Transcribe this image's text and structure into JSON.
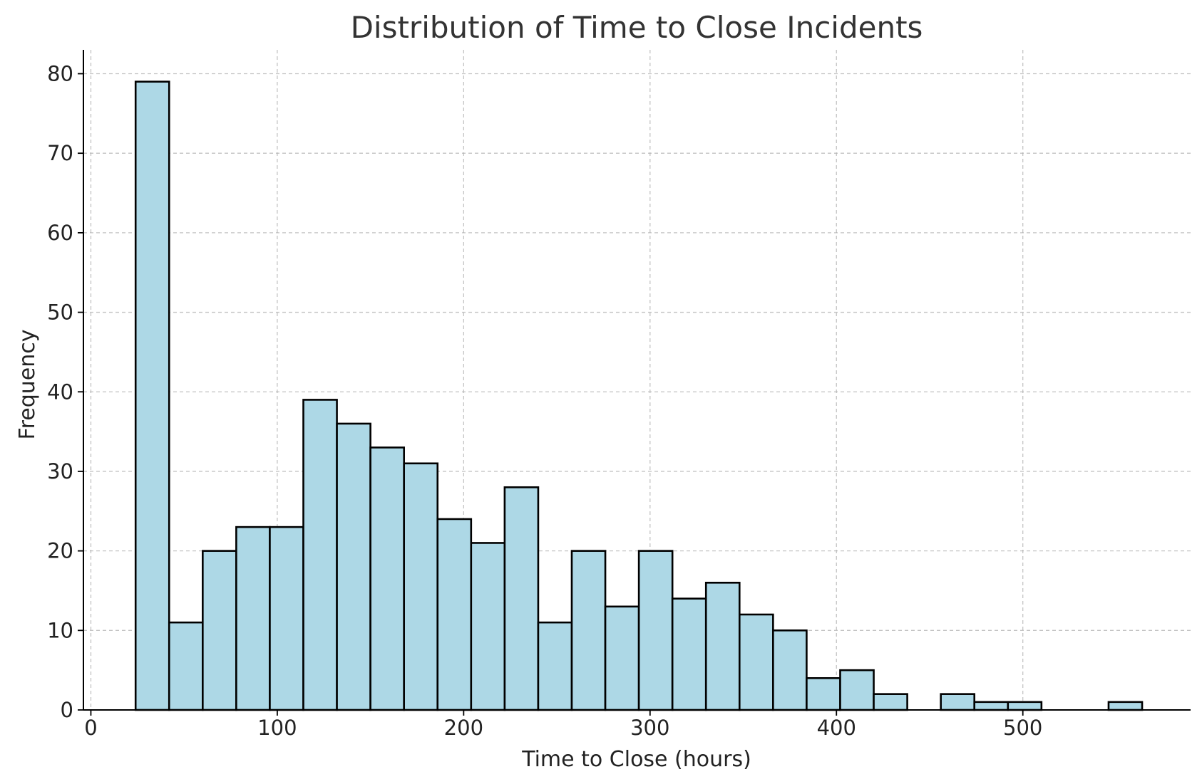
{
  "chart_data": {
    "type": "bar",
    "subtype": "histogram",
    "title": "Distribution of Time to Close Incidents",
    "xlabel": "Time to Close (hours)",
    "ylabel": "Frequency",
    "xlim": [
      -4,
      590
    ],
    "ylim": [
      0,
      83
    ],
    "xticks": [
      0,
      100,
      200,
      300,
      400,
      500
    ],
    "yticks": [
      0,
      10,
      20,
      30,
      40,
      50,
      60,
      70,
      80
    ],
    "grid": true,
    "bar_color": "#add8e6",
    "edge_color": "#000000",
    "bin_edges": [
      24,
      42,
      60,
      78,
      96,
      114,
      132,
      150,
      168,
      186,
      204,
      222,
      240,
      258,
      276,
      294,
      312,
      330,
      348,
      366,
      384,
      402,
      420,
      438,
      456,
      474,
      492,
      510,
      528,
      546,
      564
    ],
    "values": [
      79,
      11,
      20,
      23,
      23,
      39,
      36,
      33,
      31,
      24,
      21,
      28,
      11,
      20,
      13,
      20,
      14,
      16,
      12,
      10,
      4,
      5,
      2,
      0,
      2,
      1,
      1,
      0,
      0,
      1
    ]
  }
}
